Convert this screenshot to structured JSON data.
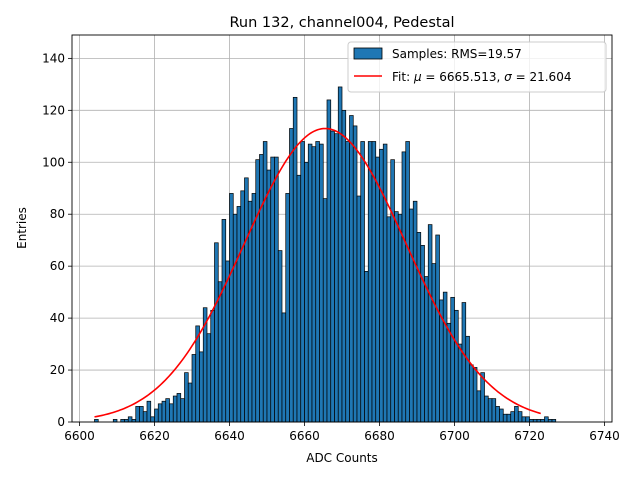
{
  "chart_data": {
    "type": "bar",
    "title": "Run 132, channel004, Pedestal",
    "xlabel": "ADC Counts",
    "ylabel": "Entries",
    "xlim": [
      6598,
      6742
    ],
    "ylim": [
      0,
      149
    ],
    "grid": true,
    "legend_position": "top-right",
    "xticks": [
      6600,
      6620,
      6640,
      6660,
      6680,
      6700,
      6720,
      6740
    ],
    "yticks": [
      0,
      20,
      40,
      60,
      80,
      100,
      120,
      140
    ],
    "histogram": {
      "name": "Samples: RMS=19.57",
      "color": "#1f77b4",
      "bin_start": 6604,
      "bin_width": 1,
      "counts": [
        1,
        0,
        0,
        0,
        0,
        1,
        0,
        1,
        1,
        2,
        1,
        6,
        6,
        4,
        8,
        2,
        5,
        7,
        8,
        9,
        7,
        10,
        11,
        9,
        19,
        15,
        26,
        37,
        27,
        44,
        34,
        43,
        69,
        54,
        78,
        62,
        88,
        80,
        83,
        89,
        94,
        85,
        88,
        101,
        103,
        108,
        97,
        102,
        102,
        66,
        42,
        88,
        113,
        125,
        95,
        108,
        100,
        107,
        106,
        108,
        107,
        86,
        124,
        112,
        111,
        129,
        120,
        108,
        118,
        114,
        87,
        108,
        58,
        108,
        108,
        102,
        105,
        107,
        79,
        101,
        81,
        80,
        104,
        108,
        82,
        85,
        73,
        68,
        56,
        76,
        61,
        72,
        47,
        50,
        38,
        48,
        43,
        30,
        46,
        33,
        22,
        21,
        12,
        19,
        10,
        9,
        9,
        6,
        5,
        3,
        3,
        4,
        6,
        4,
        2,
        2,
        1,
        1,
        1,
        1,
        2,
        1,
        1
      ]
    },
    "fit": {
      "legend_prefix": "Fit: ",
      "mu_symbol": "μ",
      "mu_value": "6665.513",
      "sigma_symbol": "σ",
      "sigma_value": "21.604",
      "mu": 6665.513,
      "sigma": 21.604,
      "amplitude": 113.0,
      "x_range": [
        6604,
        6723
      ],
      "color": "#ff0000"
    }
  }
}
